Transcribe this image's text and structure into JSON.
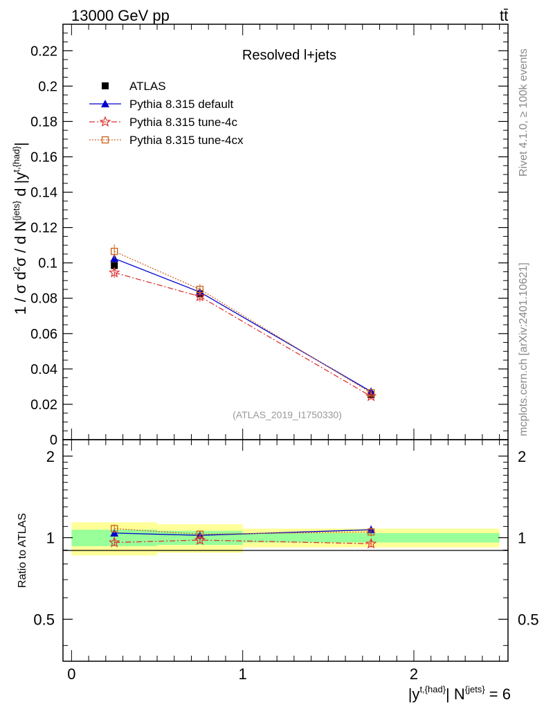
{
  "header": {
    "energy_label": "13000 GeV pp",
    "process_label": "tt̄"
  },
  "side_labels": {
    "rivet": "Rivet 4.1.0, ≥ 100k events",
    "mcplots": "mcplots.cern.ch [arXiv:2401.10621]"
  },
  "chart_data": {
    "type": "line",
    "title": "Resolved l+jets",
    "analysis_id": "(ATLAS_2019_I1750330)",
    "xlabel": "|y^{t,{had}}| N^{jets} = 6",
    "ylabel": "1 / σ d²σ / d N^{jets} d |y^{t,{had}}|",
    "xlim": [
      -0.05,
      2.55
    ],
    "ylim": [
      0,
      0.235
    ],
    "x_ticks": [
      0,
      1,
      2
    ],
    "y_ticks": [
      0,
      0.02,
      0.04,
      0.06,
      0.08,
      0.1,
      0.12,
      0.14,
      0.16,
      0.18,
      0.2,
      0.22
    ],
    "y_tick_labels": [
      "0",
      "0.02",
      "0.04",
      "0.06",
      "0.08",
      "0.1",
      "0.12",
      "0.14",
      "0.16",
      "0.18",
      "0.2",
      "0.22"
    ],
    "x_tick_labels": [
      "0",
      "1",
      "2"
    ],
    "bins": [
      [
        0,
        0.5
      ],
      [
        0.5,
        1.0
      ],
      [
        1.0,
        2.5
      ]
    ],
    "x": [
      0.25,
      0.75,
      1.75
    ],
    "series": [
      {
        "name": "ATLAS",
        "values": [
          0.0985,
          0.0825,
          0.0255
        ],
        "errors": [
          0.002,
          0.002,
          0.001
        ],
        "color": "#000000",
        "marker": "square"
      },
      {
        "name": "Pythia 8.315 default",
        "values": [
          0.1025,
          0.0835,
          0.0272
        ],
        "errors": [
          0.002,
          0.002,
          0.0008
        ],
        "color": "#0000cc",
        "marker": "triangle"
      },
      {
        "name": "Pythia 8.315 tune-4c",
        "values": [
          0.0945,
          0.081,
          0.0245
        ],
        "errors": [
          0.003,
          0.003,
          0.0012
        ],
        "color": "#dd3333",
        "marker": "star"
      },
      {
        "name": "Pythia 8.315 tune-4cx",
        "values": [
          0.1065,
          0.085,
          0.0265
        ],
        "errors": [
          0.004,
          0.003,
          0.0012
        ],
        "color": "#cc6622",
        "marker": "open-square"
      }
    ],
    "ratio": {
      "ylabel": "Ratio to ATLAS",
      "ylim": [
        0.35,
        2.3
      ],
      "y_ticks": [
        0.5,
        1,
        2
      ],
      "y_tick_labels": [
        "0.5",
        "1",
        "2"
      ],
      "band_inner": [
        [
          0.93,
          1.07
        ],
        [
          0.94,
          1.06
        ],
        [
          0.96,
          1.04
        ]
      ],
      "band_outer": [
        [
          0.86,
          1.14
        ],
        [
          0.88,
          1.12
        ],
        [
          0.92,
          1.08
        ]
      ],
      "inner_color": "#99ff99",
      "outer_color": "#ffff99",
      "series": [
        {
          "name": "Pythia 8.315 default",
          "values": [
            1.04,
            1.02,
            1.07
          ],
          "errors": [
            0.03,
            0.03,
            0.04
          ]
        },
        {
          "name": "Pythia 8.315 tune-4c",
          "values": [
            0.96,
            0.98,
            0.95
          ],
          "errors": [
            0.03,
            0.03,
            0.03
          ]
        },
        {
          "name": "Pythia 8.315 tune-4cx",
          "values": [
            1.08,
            1.03,
            1.05
          ],
          "errors": [
            0.04,
            0.03,
            0.04
          ]
        }
      ]
    }
  }
}
